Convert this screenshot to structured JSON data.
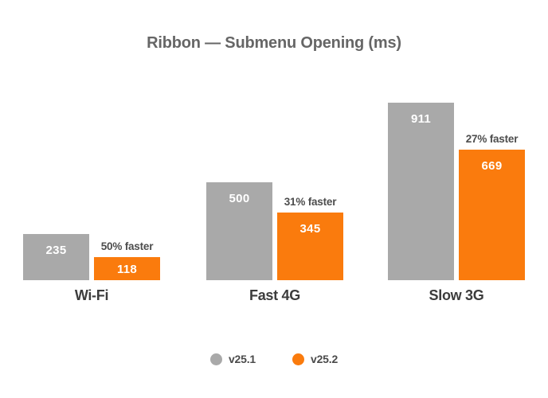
{
  "title": "Ribbon — Submenu Opening (ms)",
  "colors": {
    "series": [
      "#A9A9A9",
      "#FA7B0D"
    ],
    "title_text": "#666666",
    "category_text": "#3C3C3C",
    "annotation_text": "#4D4D4D",
    "bar_value_text": "#FFFFFF",
    "legend_text": "#4A4A4A",
    "background": "#FFFFFF"
  },
  "legend": [
    {
      "label": "v25.1"
    },
    {
      "label": "v25.2"
    }
  ],
  "chart_data": {
    "type": "bar",
    "title": "Ribbon — Submenu Opening (ms)",
    "categories": [
      "Wi-Fi",
      "Fast 4G",
      "Slow 3G"
    ],
    "series": [
      {
        "name": "v25.1",
        "values": [
          235,
          500,
          911
        ]
      },
      {
        "name": "v25.2",
        "values": [
          118,
          345,
          669
        ]
      }
    ],
    "annotations": [
      "50% faster",
      "31% faster",
      "27% faster"
    ],
    "value_labels": true,
    "xlabel": "",
    "ylabel": "",
    "ylim": [
      0,
      960
    ],
    "grid": false,
    "axes_shown": false,
    "legend_position": "bottom"
  }
}
